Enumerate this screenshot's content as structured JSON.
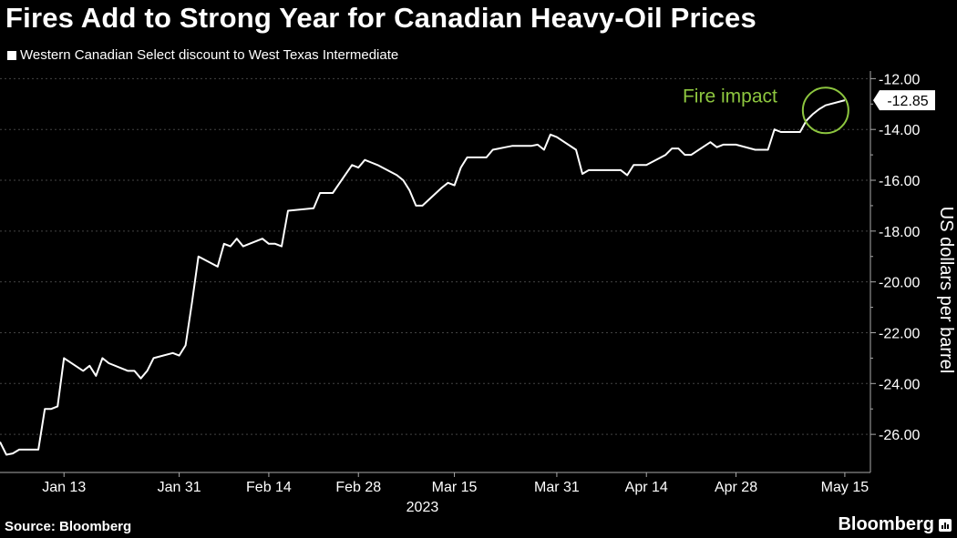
{
  "title": "Fires Add to Strong Year for Canadian Heavy-Oil Prices",
  "legend": "Western Canadian Select discount to West Texas Intermediate",
  "source": "Source: Bloomberg",
  "brand": "Bloomberg",
  "colors": {
    "line": "#ffffff",
    "annotation": "#8dc63f",
    "background": "#000000",
    "grid": "#444444"
  },
  "chart_data": {
    "type": "line",
    "title": "Fires Add to Strong Year for Canadian Heavy-Oil Prices",
    "ylabel": "US dollars per barrel",
    "year_label": "2023",
    "ylim": [
      -27.5,
      -11.7
    ],
    "yticks": [
      -12,
      -14,
      -16,
      -18,
      -20,
      -22,
      -24,
      -26
    ],
    "ytick_labels": [
      "-12.00",
      "-14.00",
      "-16.00",
      "-18.00",
      "-20.00",
      "-22.00",
      "-24.00",
      "-26.00"
    ],
    "xlim": [
      "2023-01-03",
      "2023-05-19"
    ],
    "xticks": [
      "2023-01-13",
      "2023-01-31",
      "2023-02-14",
      "2023-02-28",
      "2023-03-15",
      "2023-03-31",
      "2023-04-14",
      "2023-04-28",
      "2023-05-15"
    ],
    "xtick_labels": [
      "Jan 13",
      "Jan 31",
      "Feb 14",
      "Feb 28",
      "Mar 15",
      "Mar 31",
      "Apr 14",
      "Apr 28",
      "May 15"
    ],
    "grid": true,
    "series": [
      {
        "x": [
          "2023-01-03",
          "2023-01-04",
          "2023-01-05",
          "2023-01-06",
          "2023-01-09",
          "2023-01-10",
          "2023-01-11",
          "2023-01-12",
          "2023-01-13",
          "2023-01-16",
          "2023-01-17",
          "2023-01-18",
          "2023-01-19",
          "2023-01-20",
          "2023-01-23",
          "2023-01-24",
          "2023-01-25",
          "2023-01-26",
          "2023-01-27",
          "2023-01-30",
          "2023-01-31",
          "2023-02-01",
          "2023-02-02",
          "2023-02-03",
          "2023-02-06",
          "2023-02-07",
          "2023-02-08",
          "2023-02-09",
          "2023-02-10",
          "2023-02-13",
          "2023-02-14",
          "2023-02-15",
          "2023-02-16",
          "2023-02-17",
          "2023-02-21",
          "2023-02-22",
          "2023-02-23",
          "2023-02-24",
          "2023-02-27",
          "2023-02-28",
          "2023-03-01",
          "2023-03-02",
          "2023-03-03",
          "2023-03-06",
          "2023-03-07",
          "2023-03-08",
          "2023-03-09",
          "2023-03-10",
          "2023-03-13",
          "2023-03-14",
          "2023-03-15",
          "2023-03-16",
          "2023-03-17",
          "2023-03-20",
          "2023-03-21",
          "2023-03-22",
          "2023-03-23",
          "2023-03-24",
          "2023-03-27",
          "2023-03-28",
          "2023-03-29",
          "2023-03-30",
          "2023-03-31",
          "2023-04-03",
          "2023-04-04",
          "2023-04-05",
          "2023-04-06",
          "2023-04-10",
          "2023-04-11",
          "2023-04-12",
          "2023-04-13",
          "2023-04-14",
          "2023-04-17",
          "2023-04-18",
          "2023-04-19",
          "2023-04-20",
          "2023-04-21",
          "2023-04-24",
          "2023-04-25",
          "2023-04-26",
          "2023-04-27",
          "2023-04-28",
          "2023-05-01",
          "2023-05-02",
          "2023-05-03",
          "2023-05-04",
          "2023-05-05",
          "2023-05-08",
          "2023-05-09",
          "2023-05-10",
          "2023-05-11",
          "2023-05-12",
          "2023-05-15"
        ],
        "y": [
          -26.3,
          -26.8,
          -26.75,
          -26.6,
          -26.6,
          -25.0,
          -25.0,
          -24.9,
          -23.0,
          -23.5,
          -23.3,
          -23.7,
          -23.0,
          -23.2,
          -23.5,
          -23.5,
          -23.8,
          -23.5,
          -23.0,
          -22.8,
          -22.9,
          -22.5,
          -20.8,
          -19.0,
          -19.4,
          -18.5,
          -18.6,
          -18.3,
          -18.6,
          -18.3,
          -18.5,
          -18.5,
          -18.6,
          -17.2,
          -17.1,
          -16.5,
          -16.5,
          -16.5,
          -15.4,
          -15.5,
          -15.2,
          -15.3,
          -15.4,
          -15.8,
          -16.0,
          -16.4,
          -17.0,
          -17.0,
          -16.3,
          -16.1,
          -16.2,
          -15.5,
          -15.1,
          -15.1,
          -14.8,
          -14.75,
          -14.7,
          -14.65,
          -14.65,
          -14.6,
          -14.8,
          -14.2,
          -14.3,
          -14.8,
          -15.75,
          -15.6,
          -15.6,
          -15.6,
          -15.8,
          -15.4,
          -15.4,
          -15.4,
          -15.0,
          -14.75,
          -14.75,
          -15.0,
          -15.0,
          -14.5,
          -14.7,
          -14.6,
          -14.6,
          -14.6,
          -14.8,
          -14.8,
          -14.8,
          -14.0,
          -14.1,
          -14.1,
          -13.65,
          -13.4,
          -13.2,
          -13.05,
          -12.85
        ]
      }
    ],
    "last_value_label": "-12.85",
    "annotation": {
      "text": "Fire impact",
      "x": "2023-05-12",
      "y": -13.25
    }
  }
}
